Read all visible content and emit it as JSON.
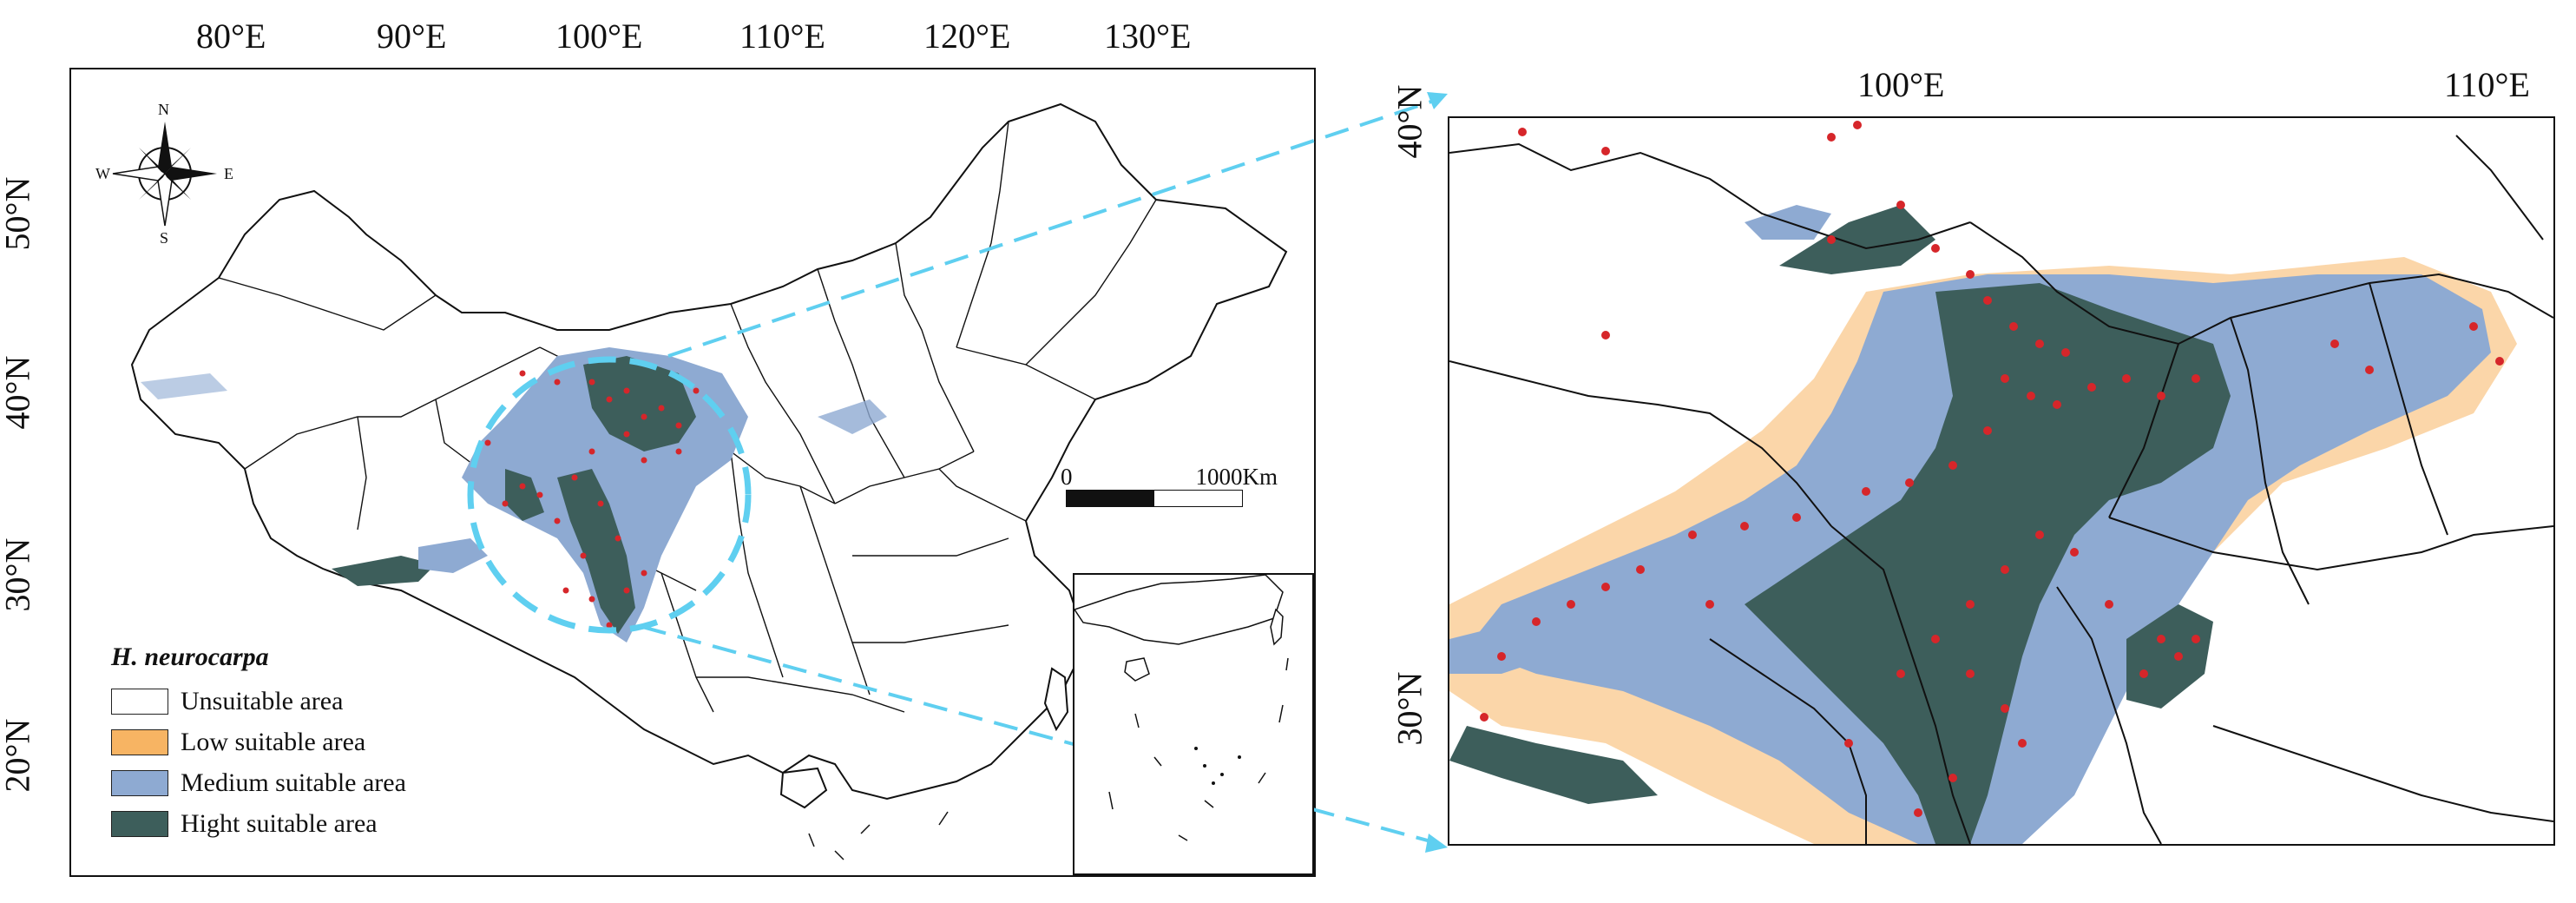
{
  "left_map": {
    "lon_labels": [
      "80°E",
      "90°E",
      "100°E",
      "110°E",
      "120°E",
      "130°E"
    ],
    "lat_labels": [
      "50°N",
      "40°N",
      "30°N",
      "20°N"
    ],
    "compass": {
      "n": "N",
      "s": "S",
      "e": "E",
      "w": "W"
    },
    "scale": {
      "zero": "0",
      "max": "1000",
      "unit": "Km"
    },
    "legend": {
      "title": "H. neurocarpa",
      "items": [
        {
          "label": "Unsuitable area",
          "color": "#ffffff"
        },
        {
          "label": "Low suitable area",
          "color": "#f7b463"
        },
        {
          "label": "Medium suitable area",
          "color": "#8eaad2"
        },
        {
          "label": "Hight suitable area",
          "color": "#3d5e5b"
        }
      ]
    }
  },
  "right_map": {
    "lon_labels": [
      "100°E",
      "110°E"
    ],
    "lat_labels": [
      "40°N",
      "30°N"
    ]
  },
  "colors": {
    "low": "#f7b463",
    "medium": "#8eaad2",
    "high": "#3d5e5b",
    "occurrence": "#d6262a",
    "zoom_line": "#5fcff0",
    "boundary": "#111111"
  }
}
